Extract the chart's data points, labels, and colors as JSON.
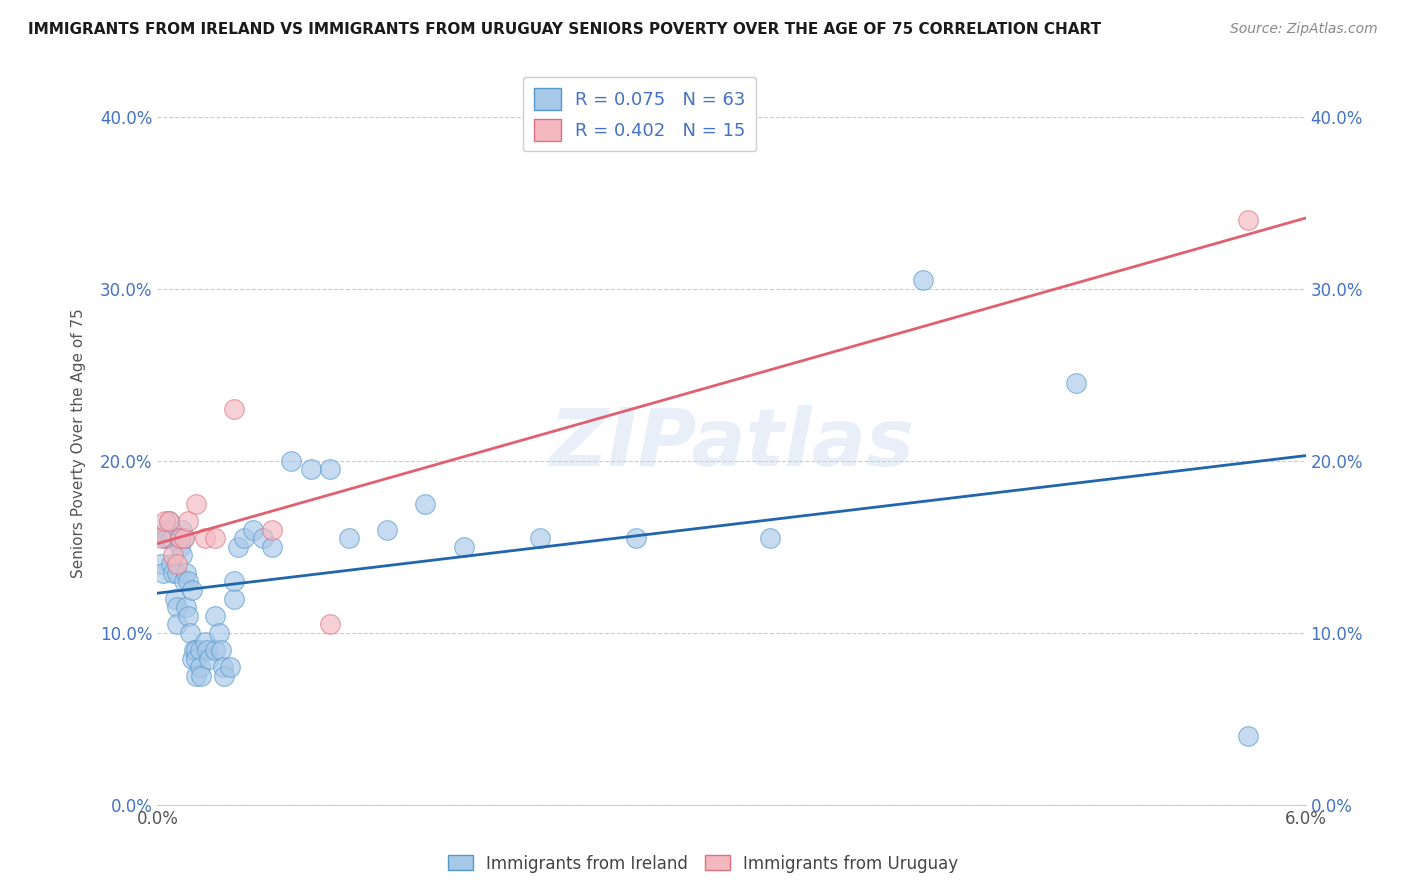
{
  "title": "IMMIGRANTS FROM IRELAND VS IMMIGRANTS FROM URUGUAY SENIORS POVERTY OVER THE AGE OF 75 CORRELATION CHART",
  "source": "Source: ZipAtlas.com",
  "xlim": [
    0.0,
    0.06
  ],
  "ylim": [
    0.0,
    0.42
  ],
  "ireland_color": "#a8c8e8",
  "ireland_edge": "#5599cc",
  "uruguay_color": "#f4b8c0",
  "uruguay_edge": "#e07080",
  "ireland_line_color": "#2166ac",
  "uruguay_line_color": "#e06070",
  "legend_ireland_label": "R = 0.075   N = 63",
  "legend_uruguay_label": "R = 0.402   N = 15",
  "legend_ireland_entry": "Immigrants from Ireland",
  "legend_uruguay_entry": "Immigrants from Uruguay",
  "watermark": "ZIPatlas",
  "ireland_x": [
    0.0002,
    0.0003,
    0.0004,
    0.0005,
    0.0005,
    0.0006,
    0.0007,
    0.0007,
    0.0008,
    0.0009,
    0.001,
    0.001,
    0.001,
    0.0012,
    0.0012,
    0.0013,
    0.0013,
    0.0014,
    0.0014,
    0.0015,
    0.0015,
    0.0016,
    0.0016,
    0.0017,
    0.0018,
    0.0018,
    0.0019,
    0.002,
    0.002,
    0.002,
    0.0022,
    0.0022,
    0.0023,
    0.0025,
    0.0026,
    0.0027,
    0.003,
    0.003,
    0.0032,
    0.0033,
    0.0034,
    0.0035,
    0.0038,
    0.004,
    0.004,
    0.0042,
    0.0045,
    0.005,
    0.0055,
    0.006,
    0.007,
    0.008,
    0.009,
    0.01,
    0.012,
    0.014,
    0.016,
    0.02,
    0.025,
    0.032,
    0.04,
    0.048,
    0.057
  ],
  "ireland_y": [
    0.14,
    0.135,
    0.155,
    0.16,
    0.155,
    0.165,
    0.155,
    0.14,
    0.135,
    0.12,
    0.135,
    0.115,
    0.105,
    0.15,
    0.155,
    0.16,
    0.145,
    0.155,
    0.13,
    0.135,
    0.115,
    0.13,
    0.11,
    0.1,
    0.085,
    0.125,
    0.09,
    0.09,
    0.085,
    0.075,
    0.09,
    0.08,
    0.075,
    0.095,
    0.09,
    0.085,
    0.11,
    0.09,
    0.1,
    0.09,
    0.08,
    0.075,
    0.08,
    0.12,
    0.13,
    0.15,
    0.155,
    0.16,
    0.155,
    0.15,
    0.2,
    0.195,
    0.195,
    0.155,
    0.16,
    0.175,
    0.15,
    0.155,
    0.155,
    0.155,
    0.305,
    0.245,
    0.04
  ],
  "uruguay_x": [
    0.0002,
    0.0004,
    0.0006,
    0.0008,
    0.001,
    0.0012,
    0.0014,
    0.0016,
    0.002,
    0.0025,
    0.003,
    0.004,
    0.006,
    0.009,
    0.057
  ],
  "uruguay_y": [
    0.155,
    0.165,
    0.165,
    0.145,
    0.14,
    0.155,
    0.155,
    0.165,
    0.175,
    0.155,
    0.155,
    0.23,
    0.16,
    0.105,
    0.34
  ],
  "xtick_vals": [
    0.0,
    0.01,
    0.02,
    0.03,
    0.04,
    0.05,
    0.06
  ],
  "ytick_vals": [
    0.0,
    0.1,
    0.2,
    0.3,
    0.4
  ]
}
